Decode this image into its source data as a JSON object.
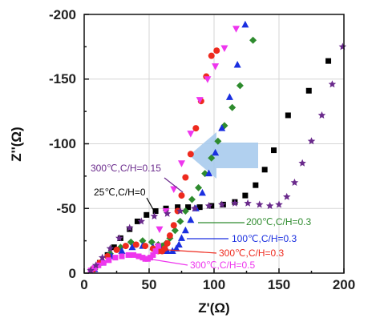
{
  "chart_data": {
    "type": "scatter",
    "title": "",
    "xlabel": "Z'(Ω)",
    "ylabel": "Z''(Ω)",
    "xlim": [
      0,
      200
    ],
    "ylim": [
      0,
      -200
    ],
    "x_ticks": [
      "0",
      "50",
      "100",
      "150",
      "200"
    ],
    "y_ticks": [
      "0",
      "-50",
      "-100",
      "-150",
      "-200"
    ],
    "grid": true,
    "arrow_color": "#a9cbed",
    "series": [
      {
        "name": "25℃,C/H=0",
        "color": "#000000",
        "marker": "square",
        "x": [
          7,
          12,
          18,
          23,
          28,
          35,
          41,
          48,
          55,
          63,
          72,
          80,
          89,
          98,
          107,
          116,
          124,
          132,
          139,
          146,
          157,
          173,
          188
        ],
        "y": [
          -3,
          -8,
          -14,
          -20,
          -27,
          -34,
          -40,
          -45,
          -48,
          -50,
          -51,
          -51,
          -51,
          -52,
          -53,
          -55,
          -60,
          -68,
          -80,
          -95,
          -122,
          -141,
          -164
        ]
      },
      {
        "name": "200℃,C/H=0.3",
        "color": "#2e8b2e",
        "marker": "diamond",
        "x": [
          8,
          14,
          20,
          28,
          36,
          45,
          52,
          57,
          60,
          62,
          63,
          66,
          70,
          74,
          78,
          83,
          88,
          93,
          98,
          103,
          108,
          114,
          120,
          130
        ],
        "y": [
          -3,
          -9,
          -15,
          -20,
          -24,
          -25,
          -24,
          -22,
          -21,
          -21,
          -23,
          -27,
          -33,
          -40,
          -48,
          -57,
          -66,
          -77,
          -89,
          -102,
          -114,
          -128,
          -145,
          -180
        ]
      },
      {
        "name": "100℃,C/H=0.3",
        "color": "#1a2fe0",
        "marker": "triangle",
        "x": [
          8,
          14,
          21,
          29,
          37,
          45,
          53,
          59,
          64,
          68,
          71,
          73,
          75,
          78,
          82,
          86,
          91,
          96,
          101,
          106,
          112,
          118,
          124
        ],
        "y": [
          -3,
          -8,
          -13,
          -17,
          -20,
          -21,
          -20,
          -18,
          -17,
          -17,
          -19,
          -22,
          -27,
          -33,
          -41,
          -50,
          -62,
          -77,
          -93,
          -112,
          -136,
          -161,
          -192
        ]
      },
      {
        "name": "300℃,C/H=0.3",
        "color": "#ee2a1e",
        "marker": "circle",
        "x": [
          7,
          12,
          18,
          25,
          32,
          40,
          47,
          53,
          57,
          60,
          62,
          64,
          66,
          69,
          72,
          75,
          78,
          82,
          86,
          90,
          94,
          98,
          102
        ],
        "y": [
          -3,
          -8,
          -13,
          -18,
          -21,
          -22,
          -21,
          -19,
          -17,
          -17,
          -19,
          -23,
          -29,
          -37,
          -48,
          -60,
          -74,
          -92,
          -112,
          -133,
          -152,
          -168,
          -172
        ]
      },
      {
        "name": "300℃,C/H=0.5",
        "color": "#ee36ee",
        "marker": "square",
        "x": [
          5,
          8,
          11,
          15,
          19,
          24,
          29,
          34,
          38,
          42,
          45,
          47,
          49,
          51,
          53,
          55,
          57
        ],
        "y": [
          -2,
          -4,
          -6,
          -8,
          -10,
          -12,
          -13,
          -14,
          -14,
          -13,
          -12,
          -11,
          -11,
          -12,
          -14,
          -17,
          -21
        ]
      },
      {
        "name": "300℃,C/H=0.15",
        "color": "#ee36ee",
        "marker": "triangle-down",
        "x": [
          58,
          63,
          69,
          75,
          82,
          89,
          95,
          101,
          108,
          117
        ],
        "y": [
          -34,
          -48,
          -65,
          -85,
          -108,
          -134,
          -150,
          -160,
          -174,
          -189
        ]
      },
      {
        "name": "",
        "color": "#6a2a8c",
        "marker": "star",
        "x": [
          5,
          9,
          14,
          20,
          27,
          35,
          44,
          54,
          64,
          74,
          85,
          96,
          106,
          116,
          126,
          135,
          143,
          150,
          156,
          162,
          168,
          175,
          183,
          191,
          199
        ],
        "y": [
          -2,
          -6,
          -12,
          -19,
          -27,
          -35,
          -40,
          -44,
          -46,
          -48,
          -50,
          -52,
          -53,
          -54,
          -54,
          -53,
          -52,
          -53,
          -59,
          -70,
          -85,
          -102,
          -122,
          -146,
          -175
        ]
      }
    ]
  }
}
